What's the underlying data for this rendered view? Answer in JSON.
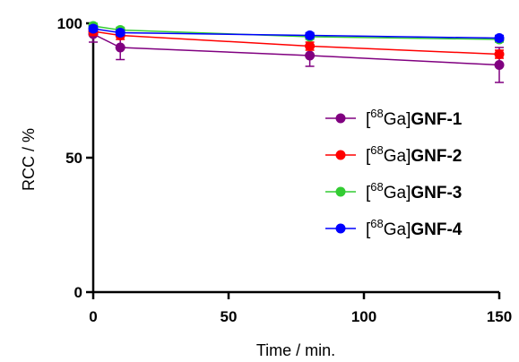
{
  "chart_data": {
    "type": "line",
    "xlabel": "Time / min.",
    "ylabel": "RCC / %",
    "xlim": [
      0,
      150
    ],
    "ylim": [
      0,
      100
    ],
    "x_ticks": [
      "0",
      "50",
      "100",
      "150"
    ],
    "x_tick_values": [
      0,
      50,
      100,
      150
    ],
    "y_ticks": [
      "0",
      "50",
      "100"
    ],
    "y_tick_values": [
      0,
      50,
      100
    ],
    "grid": false,
    "legend_position": "right",
    "series": [
      {
        "name": "[68Ga]GNF-1",
        "label_prefix": "[",
        "label_sup": "68",
        "label_mid": "Ga]",
        "label_bold": "GNF-1",
        "color": "#800080",
        "x": [
          0,
          10,
          80,
          150
        ],
        "y": [
          96,
          91,
          88,
          84.5
        ],
        "err": [
          3,
          4.5,
          4,
          6.5
        ]
      },
      {
        "name": "[68Ga]GNF-2",
        "label_prefix": "[",
        "label_sup": "68",
        "label_mid": "Ga]",
        "label_bold": "GNF-2",
        "color": "#ff0000",
        "x": [
          0,
          10,
          80,
          150
        ],
        "y": [
          97,
          95.5,
          91.5,
          88.5
        ],
        "err": [
          1.5,
          1.5,
          1.5,
          1.5
        ]
      },
      {
        "name": "[68Ga]GNF-3",
        "label_prefix": "[",
        "label_sup": "68",
        "label_mid": "Ga]",
        "label_bold": "GNF-3",
        "color": "#33cc33",
        "x": [
          0,
          10,
          80,
          150
        ],
        "y": [
          99,
          97.5,
          95,
          94
        ],
        "err": [
          1,
          1,
          1,
          1
        ]
      },
      {
        "name": "[68Ga]GNF-4",
        "label_prefix": "[",
        "label_sup": "68",
        "label_mid": "Ga]",
        "label_bold": "GNF-4",
        "color": "#0000ff",
        "x": [
          0,
          10,
          80,
          150
        ],
        "y": [
          98,
          96.5,
          95.5,
          94.5
        ],
        "err": [
          1,
          1,
          1,
          1
        ]
      }
    ]
  }
}
